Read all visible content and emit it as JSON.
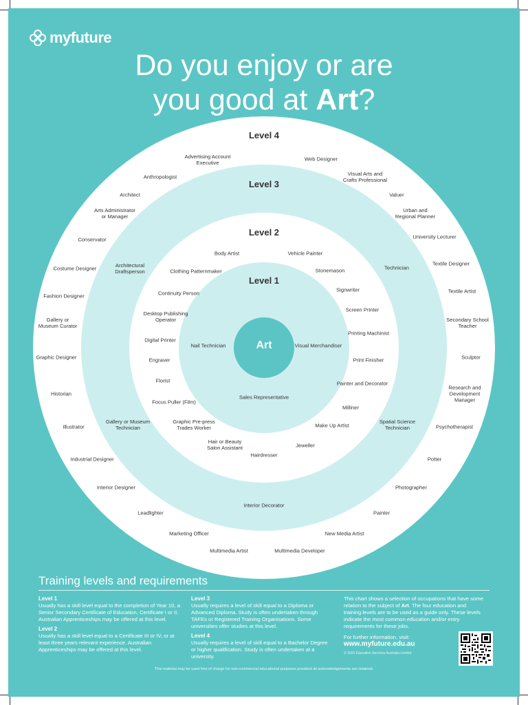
{
  "brand": {
    "name": "myfuture",
    "logo_icon": "flower-icon"
  },
  "title": {
    "prefix_line1": "Do you enjoy or are",
    "prefix_line2": "you good at ",
    "subject": "Art",
    "suffix": "?"
  },
  "colors": {
    "background": "#5bc5c5",
    "outer_ring": "#ffffff",
    "middle_ring": "#cdeeee",
    "center": "#5bc5c5",
    "text": "#333333"
  },
  "wheel": {
    "center": "Art",
    "levels": [
      "Level 1",
      "Level 2",
      "Level 3",
      "Level 4"
    ],
    "level1": [
      "Nail Technician",
      "Visual Merchandiser",
      "Sales Representative"
    ],
    "level2": [
      "Body Artist",
      "Vehicle Painter",
      "Clothing Patternmaker",
      "Stonemason",
      "Continuity Person",
      "Signwriter",
      "Desktop Publishing Operator",
      "Screen Printer",
      "Printing Machinist",
      "Digital Printer",
      "Engraver",
      "Print Finisher",
      "Florist",
      "Painter and Decorator",
      "Focus Puller (Film)",
      "Milliner",
      "Graphic Pre-press Trades Worker",
      "Make Up Artist",
      "Hair or Beauty Salon Assistant",
      "Jeweller",
      "Hairdresser"
    ],
    "level3": [
      "Architectural Draftsperson",
      "Technician",
      "Gallery or Museum Technician",
      "Spatial Science Technician",
      "Interior Decorator"
    ],
    "level4": [
      "Advertising Account Executive",
      "Web Designer",
      "Anthropologist",
      "Visual Arts and Crafts Professional",
      "Architect",
      "Valuer",
      "Arts Administrator or Manager",
      "Urban and Regional Planner",
      "Conservator",
      "University Lecturer",
      "Costume Designer",
      "Textile Designer",
      "Fashion Designer",
      "Textile Artist",
      "Gallery or Museum Curator",
      "Secondary School Teacher",
      "Graphic Designer",
      "Sculptor",
      "Historian",
      "Research and Development Manager",
      "Illustrator",
      "Psychotherapist",
      "Industrial Designer",
      "Potter",
      "Interior Designer",
      "Photographer",
      "Leadlighter",
      "Painter",
      "Marketing Officer",
      "New Media Artist",
      "Multimedia Artist",
      "Multimedia Developer"
    ]
  },
  "training": {
    "heading": "Training levels and requirements",
    "level1": {
      "label": "Level 1",
      "text": "Usually has a skill level equal to the completion of Year 10, a Senior Secondary Certificate of Education, Certificate I or II. Australian Apprenticeships may be offered at this level."
    },
    "level2": {
      "label": "Level 2",
      "text": "Usually has a skill level equal to a Certificate III or IV, or at least three years relevant experience. Australian Apprenticeships may be offered at this level."
    },
    "level3": {
      "label": "Level 3",
      "text": "Usually requires a level of skill equal to a Diploma or Advanced Diploma. Study is often undertaken through TAFEs or Registered Training Organisations. Some universities offer studies at this level."
    },
    "level4": {
      "label": "Level 4",
      "text": "Usually requires a level of skill equal to a Bachelor Degree or higher qualification. Study is often undertaken at a university."
    },
    "chart_note_pre": "This chart shows a selection of occupations that have some relation to the subject of ",
    "chart_note_subject": "Art",
    "chart_note_post": ". The four education and training levels are to be used as a guide only. These levels indicate the most common education and/or entry requirements for these jobs.",
    "visit_label": "For further information, visit:",
    "visit_url": "www.myfuture.edu.au",
    "copyright": "© 2024 Education Services Australia Limited"
  },
  "disclaimer": "This material may be used free of charge for non-commercial educational purposes provided all acknowledgements are retained.",
  "qr_icon": "qr-code-icon"
}
